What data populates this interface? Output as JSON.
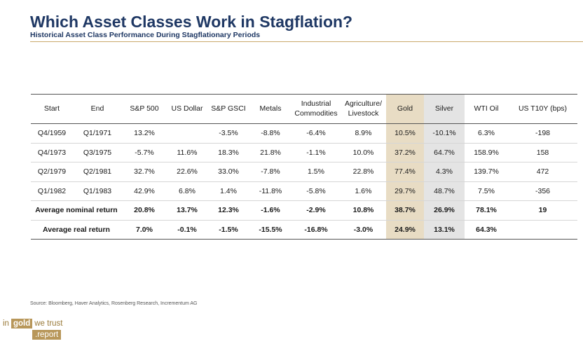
{
  "title": "Which Asset Classes Work in Stagflation?",
  "subtitle": "Historical Asset Class Performance During Stagflationary Periods",
  "table": {
    "headers": [
      "Start",
      "End",
      "S&P 500",
      "US Dollar",
      "S&P GSCI",
      "Metals",
      "Industrial\nCommodities",
      "Agriculture/\nLivestock",
      "Gold",
      "Silver",
      "WTI Oil",
      "US T10Y (bps)"
    ],
    "rows": [
      [
        "Q4/1959",
        "Q1/1971",
        "13.2%",
        "",
        "-3.5%",
        "-8.8%",
        "-6.4%",
        "8.9%",
        "10.5%",
        "-10.1%",
        "6.3%",
        "-198"
      ],
      [
        "Q4/1973",
        "Q3/1975",
        "-5.7%",
        "11.6%",
        "18.3%",
        "21.8%",
        "-1.1%",
        "10.0%",
        "37.2%",
        "64.7%",
        "158.9%",
        "158"
      ],
      [
        "Q2/1979",
        "Q2/1981",
        "32.7%",
        "22.6%",
        "33.0%",
        "-7.8%",
        "1.5%",
        "22.8%",
        "77.4%",
        "4.3%",
        "139.7%",
        "472"
      ],
      [
        "Q1/1982",
        "Q1/1983",
        "42.9%",
        "6.8%",
        "1.4%",
        "-11.8%",
        "-5.8%",
        "1.6%",
        "29.7%",
        "48.7%",
        "7.5%",
        "-356"
      ]
    ],
    "avg_nominal": {
      "label": "Average nominal return",
      "values": [
        "20.8%",
        "13.7%",
        "12.3%",
        "-1.6%",
        "-2.9%",
        "10.8%",
        "38.7%",
        "26.9%",
        "78.1%",
        "19"
      ]
    },
    "avg_real": {
      "label": "Average real return",
      "values": [
        "7.0%",
        "-0.1%",
        "-1.5%",
        "-15.5%",
        "-16.8%",
        "-3.0%",
        "24.9%",
        "13.1%",
        "64.3%",
        ""
      ]
    }
  },
  "source": "Source: Bloomberg, Haver Analytics, Rosenberg Research, Incrementum AG",
  "logo": {
    "part1": "in",
    "part2": "gold",
    "part3": "we trust",
    "part4": ".report"
  },
  "colors": {
    "title": "#1f3864",
    "gold_column": "#e8dcc4",
    "silver_column": "#e4e4e4",
    "brand": "#b8975a"
  }
}
